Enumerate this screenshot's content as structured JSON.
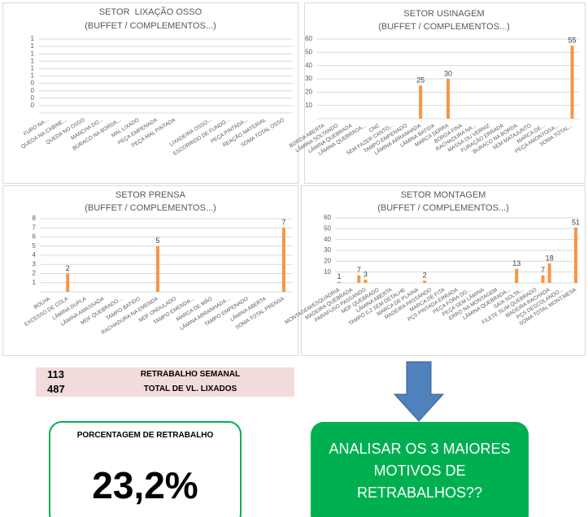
{
  "chart_data": [
    {
      "type": "bar",
      "title": "SETOR  LIXAÇÃO OSSO",
      "subtitle": "(BUFFET / COMPLEMENTOS...)",
      "color": "#f79646",
      "grid": true,
      "categories": [
        "FURO NA...",
        "QUEDA NA CABINE...",
        "QUEDA NO OSSO",
        "MANCHA DO...",
        "BURACO NA BORDA...",
        "MAL LIXADO",
        "PEÇA EMPENADA",
        "PEÇA MAL PINTADA",
        null,
        "LIXADEIRA OSSO...",
        "ESCORRIDO DE FUNDO...",
        "PEÇA PINTADA...",
        "REAÇÃO MATERIAL",
        "SOMA TOTAL OSSO"
      ],
      "values": [
        null,
        null,
        null,
        null,
        null,
        null,
        null,
        null,
        null,
        null,
        null,
        null,
        null,
        null
      ],
      "ylim": [
        0,
        1
      ],
      "yticks": [
        {
          "value": 0.1,
          "label": "0"
        },
        {
          "value": 0.2,
          "label": "0"
        },
        {
          "value": 0.3,
          "label": "0"
        },
        {
          "value": 0.4,
          "label": "0"
        },
        {
          "value": 0.5,
          "label": "1"
        },
        {
          "value": 0.6,
          "label": "1"
        },
        {
          "value": 0.7,
          "label": "1"
        },
        {
          "value": 0.8,
          "label": "1"
        },
        {
          "value": 0.9,
          "label": "1"
        },
        {
          "value": 1,
          "label": "1"
        }
      ]
    },
    {
      "type": "bar",
      "title": "SETOR USINAGEM",
      "subtitle": "(BUFFET / COMPLEMENTOS...)",
      "color": "#f79646",
      "grid": true,
      "categories": [
        "BORDA ABERTA",
        "LÂMINA SOLTANDO",
        "LÂMINA QUEBRADA",
        "LÂMINA QUEBRADA...",
        "CNC",
        "SEM FAZER CANTO...",
        "TAMPO EMPENADO",
        "LÂMINA ARRANHADA",
        "LÂMINA BATIDA",
        "MARCA SERRA",
        "BORDA FINA",
        "RACHADURA NA...",
        "MASSA OU VERNIZ",
        "FURAÇÃO ERRADA",
        "BURACO NA BORDA",
        "SEM MATAJUNTO",
        "MARCA DE...",
        "PEÇA AMONTOGA...",
        "SOMA TOTAL..."
      ],
      "values": [
        null,
        null,
        null,
        null,
        null,
        null,
        null,
        25,
        null,
        30,
        null,
        null,
        null,
        null,
        null,
        null,
        null,
        null,
        55
      ],
      "ylim": [
        0,
        60
      ],
      "yticks": [
        10,
        20,
        30,
        40,
        50,
        60
      ]
    },
    {
      "type": "bar",
      "title": "SETOR PRENSA",
      "subtitle": "(BUFFET / COMPLEMENTOS...)",
      "color": "#f79646",
      "grid": true,
      "categories": [
        "BOLHA",
        "EXCESSO DE COLA",
        "LÂMINA DUPLA",
        "LÂMINA AMASSADA",
        "MDF QUEBRADO...",
        "TAMPO BATIDO",
        "RACHADURA NA EMENDA",
        "MDF ONDULADO",
        "TAMPO EMENDA...",
        "MARCA DE MÃO",
        "LÂMINA ARRANHADA...",
        "TAMPO EMPENADO",
        "LÂMINA ABERTA",
        "SOMA TOTAL PRENSA"
      ],
      "values": [
        null,
        2,
        null,
        null,
        null,
        null,
        5,
        null,
        null,
        null,
        null,
        null,
        null,
        7
      ],
      "ylim": [
        0,
        8
      ],
      "yticks": [
        1,
        2,
        3,
        4,
        5,
        6,
        7,
        8
      ]
    },
    {
      "type": "bar",
      "title": "SETOR MONTAGEM",
      "subtitle": "(BUFFET / COMPLEMENTOS...)",
      "color": "#f79646",
      "grid": true,
      "categories": [
        "MONTAGEM/ESQUADRIA",
        null,
        "MADEIRA QUEBRADA",
        null,
        "PARAFUSO PASSANDO",
        null,
        "MDF QUEBRADO",
        null,
        "LÂMINA ABERTA",
        null,
        "TAMPO 0,2 SEM DETALHE",
        null,
        "MARCA DE PLAINA",
        null,
        "MADEIRA PASSANDO",
        null,
        "MARCA DE FITA",
        null,
        "PÇS PINTADA ERRADA",
        null,
        "PEÇA FORA DO...",
        null,
        "PEÇA SEM LÂMINA",
        null,
        "ERRO NA MONTAGEM",
        null,
        "LÂMINA QUEBRADA...",
        null,
        "SAIA SOLTA...",
        null,
        "FILETE SLIM QUEBRADO",
        null,
        "MADEIRA RACHADA",
        null,
        "PÇS DESCOLANDO...",
        null,
        "SOMA TOTAL MONT.MESA"
      ],
      "values": [
        1,
        null,
        null,
        7,
        3,
        null,
        null,
        null,
        null,
        null,
        null,
        null,
        null,
        2,
        null,
        null,
        null,
        null,
        null,
        null,
        null,
        null,
        null,
        null,
        null,
        null,
        null,
        13,
        null,
        null,
        null,
        7,
        18,
        null,
        null,
        null,
        51
      ],
      "ylim": [
        0,
        60
      ],
      "yticks": [
        10,
        20,
        30,
        40,
        50,
        60
      ]
    }
  ],
  "summary": {
    "rows": [
      [
        "113",
        "RETRABALHO SEMANAL"
      ],
      [
        "487",
        "TOTAL DE VL. LIXADOS"
      ]
    ]
  },
  "percent_box": {
    "title": "PORCENTAGEM DE RETRABALHO",
    "value": "23,2%"
  },
  "callout": {
    "lines": [
      "ANALISAR OS 3 MAIORES",
      "MOTIVOS DE",
      "RETRABALHOS??"
    ]
  }
}
